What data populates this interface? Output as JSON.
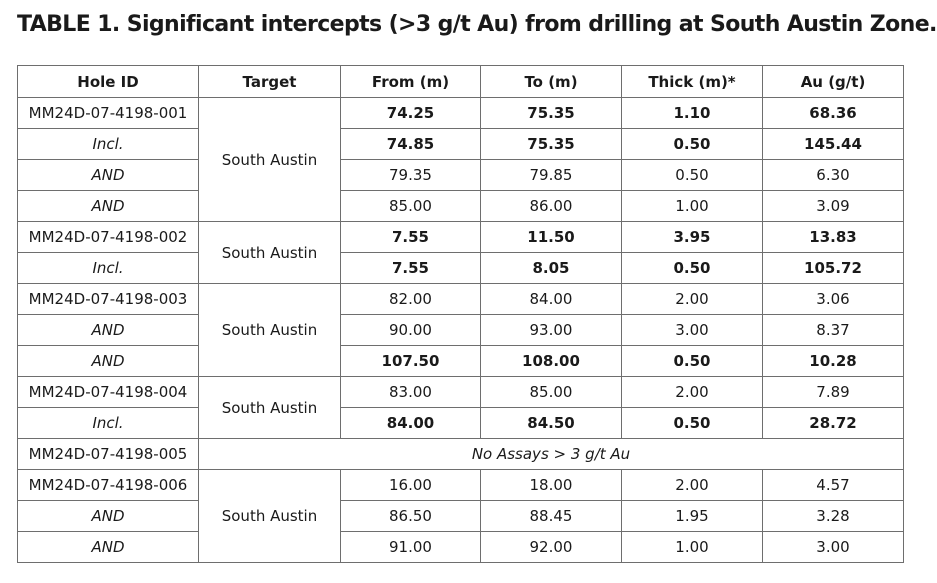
{
  "title": "TABLE 1. Significant intercepts (>3 g/t Au) from drilling at South Austin Zone.",
  "headers": [
    "Hole ID",
    "Target",
    "From (m)",
    "To (m)",
    "Thick (m)*",
    "Au (g/t)"
  ],
  "rows": [
    {
      "hole": "MM24D-07-4198-001",
      "target": "South Austin",
      "from": "74.25",
      "to": "75.35",
      "thick": "1.10",
      "au": "68.36"
    },
    {
      "hole": "Incl.",
      "from": "74.85",
      "to": "75.35",
      "thick": "0.50",
      "au": "145.44"
    },
    {
      "hole": "AND",
      "from": "79.35",
      "to": "79.85",
      "thick": "0.50",
      "au": "6.30"
    },
    {
      "hole": "AND",
      "from": "85.00",
      "to": "86.00",
      "thick": "1.00",
      "au": "3.09"
    },
    {
      "hole": "MM24D-07-4198-002",
      "target": "South Austin",
      "from": "7.55",
      "to": "11.50",
      "thick": "3.95",
      "au": "13.83"
    },
    {
      "hole": "Incl.",
      "from": "7.55",
      "to": "8.05",
      "thick": "0.50",
      "au": "105.72"
    },
    {
      "hole": "MM24D-07-4198-003",
      "target": "South Austin",
      "from": "82.00",
      "to": "84.00",
      "thick": "2.00",
      "au": "3.06"
    },
    {
      "hole": "AND",
      "from": "90.00",
      "to": "93.00",
      "thick": "3.00",
      "au": "8.37"
    },
    {
      "hole": "AND",
      "from": "107.50",
      "to": "108.00",
      "thick": "0.50",
      "au": "10.28"
    },
    {
      "hole": "MM24D-07-4198-004",
      "target": "South Austin",
      "from": "83.00",
      "to": "85.00",
      "thick": "2.00",
      "au": "7.89"
    },
    {
      "hole": "Incl.",
      "from": "84.00",
      "to": "84.50",
      "thick": "0.50",
      "au": "28.72"
    },
    {
      "hole": "MM24D-07-4198-005",
      "note": "No Assays > 3 g/t Au"
    },
    {
      "hole": "MM24D-07-4198-006",
      "target": "South Austin",
      "from": "16.00",
      "to": "18.00",
      "thick": "2.00",
      "au": "4.57"
    },
    {
      "hole": "AND",
      "from": "86.50",
      "to": "88.45",
      "thick": "1.95",
      "au": "3.28"
    },
    {
      "hole": "AND",
      "from": "91.00",
      "to": "92.00",
      "thick": "1.00",
      "au": "3.00"
    }
  ]
}
